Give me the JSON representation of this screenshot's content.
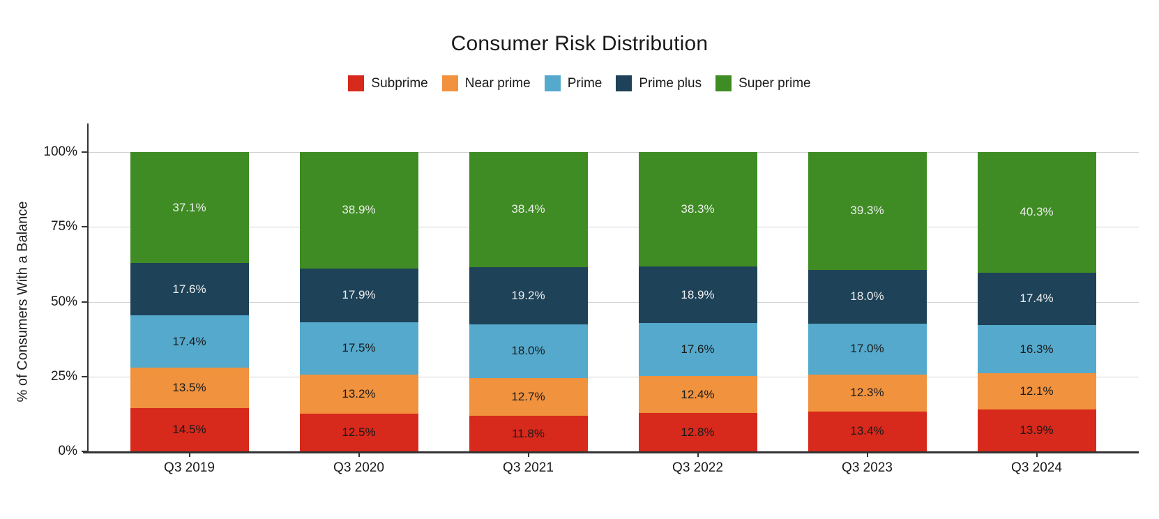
{
  "chart_data": {
    "type": "bar",
    "stacked": true,
    "title": "Consumer Risk Distribution",
    "ylabel": "% of Consumers With a Balance",
    "xlabel": "",
    "categories": [
      "Q3 2019",
      "Q3 2020",
      "Q3 2021",
      "Q3 2022",
      "Q3 2023",
      "Q3 2024"
    ],
    "series": [
      {
        "name": "Subprime",
        "color": "#d7291c",
        "label_text_color": "#1a1a1a",
        "values": [
          14.5,
          12.5,
          11.8,
          12.8,
          13.4,
          13.9
        ]
      },
      {
        "name": "Near prime",
        "color": "#f0923e",
        "label_text_color": "#1a1a1a",
        "values": [
          13.5,
          13.2,
          12.7,
          12.4,
          12.3,
          12.1
        ]
      },
      {
        "name": "Prime",
        "color": "#54a9cc",
        "label_text_color": "#1a1a1a",
        "values": [
          17.4,
          17.5,
          18.0,
          17.6,
          17.0,
          16.3
        ]
      },
      {
        "name": "Prime plus",
        "color": "#1e4258",
        "label_text_color": "#eeeeee",
        "values": [
          17.6,
          17.9,
          19.2,
          18.9,
          18.0,
          17.4
        ]
      },
      {
        "name": "Super prime",
        "color": "#3e8c23",
        "label_text_color": "#eeeeee",
        "values": [
          37.1,
          38.9,
          38.4,
          38.3,
          39.3,
          40.3
        ]
      }
    ],
    "yticks": [
      {
        "value": 0,
        "label": "0%"
      },
      {
        "value": 25,
        "label": "25%"
      },
      {
        "value": 50,
        "label": "50%"
      },
      {
        "value": 75,
        "label": "75%"
      },
      {
        "value": 100,
        "label": "100%"
      }
    ],
    "ylim": [
      0,
      100
    ],
    "value_suffix": "%",
    "grid": true,
    "legend_position": "top",
    "colors": {
      "grid": "#d2d2d2",
      "axis": "#333333",
      "title_text": "#1a1a1a"
    }
  }
}
